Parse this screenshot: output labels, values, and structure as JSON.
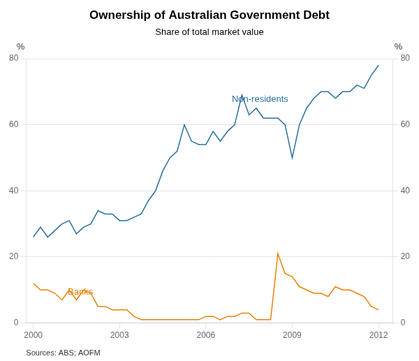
{
  "chart_data": {
    "type": "line",
    "title": "Ownership of Australian Government Debt",
    "subtitle": "Share of total market value",
    "source": "Sources: ABS; AOFM",
    "ylabel": "%",
    "y2label": "%",
    "x": [
      2000.0,
      2000.25,
      2000.5,
      2000.75,
      2001.0,
      2001.25,
      2001.5,
      2001.75,
      2002.0,
      2002.25,
      2002.5,
      2002.75,
      2003.0,
      2003.25,
      2003.5,
      2003.75,
      2004.0,
      2004.25,
      2004.5,
      2004.75,
      2005.0,
      2005.25,
      2005.5,
      2005.75,
      2006.0,
      2006.25,
      2006.5,
      2006.75,
      2007.0,
      2007.25,
      2007.5,
      2007.75,
      2008.0,
      2008.25,
      2008.5,
      2008.75,
      2009.0,
      2009.25,
      2009.5,
      2009.75,
      2010.0,
      2010.25,
      2010.5,
      2010.75,
      2011.0,
      2011.25,
      2011.5,
      2011.75,
      2012.0
    ],
    "series": [
      {
        "name": "Non-residents",
        "color": "#2871a0",
        "values": [
          26,
          29,
          26,
          28,
          30,
          31,
          27,
          29,
          30,
          34,
          33,
          33,
          31,
          31,
          32,
          33,
          37,
          40,
          46,
          50,
          52,
          60,
          55,
          54,
          54,
          58,
          55,
          58,
          60,
          69,
          63,
          65,
          62,
          62,
          62,
          60,
          50,
          60,
          65,
          68,
          70,
          70,
          68,
          70,
          70,
          72,
          71,
          75,
          78
        ]
      },
      {
        "name": "Banks",
        "color": "#e8820a",
        "values": [
          12,
          10,
          10,
          9,
          7,
          10,
          7,
          10,
          9,
          5,
          5,
          4,
          4,
          4,
          2,
          1,
          1,
          1,
          1,
          1,
          1,
          1,
          1,
          1,
          2,
          2,
          1,
          2,
          2,
          3,
          3,
          1,
          1,
          1,
          21,
          15,
          14,
          11,
          10,
          9,
          9,
          8,
          11,
          10,
          10,
          9,
          8,
          5,
          4
        ]
      }
    ],
    "annotations": [
      {
        "text": "Non-residents",
        "x": 2006.9,
        "y": 67,
        "color": "#2871a0"
      },
      {
        "text": "Banks",
        "x": 2001.2,
        "y": 8.5,
        "color": "#e8820a"
      }
    ],
    "xlim": [
      1999.75,
      2012.5
    ],
    "xticks": [
      2000,
      2003,
      2006,
      2009,
      2012
    ],
    "ylim": [
      0,
      80
    ],
    "yticks": [
      0,
      20,
      40,
      60,
      80
    ],
    "y2lim": [
      0,
      80
    ],
    "y2ticks": [
      0,
      20,
      40,
      60,
      80
    ],
    "grid": true
  }
}
